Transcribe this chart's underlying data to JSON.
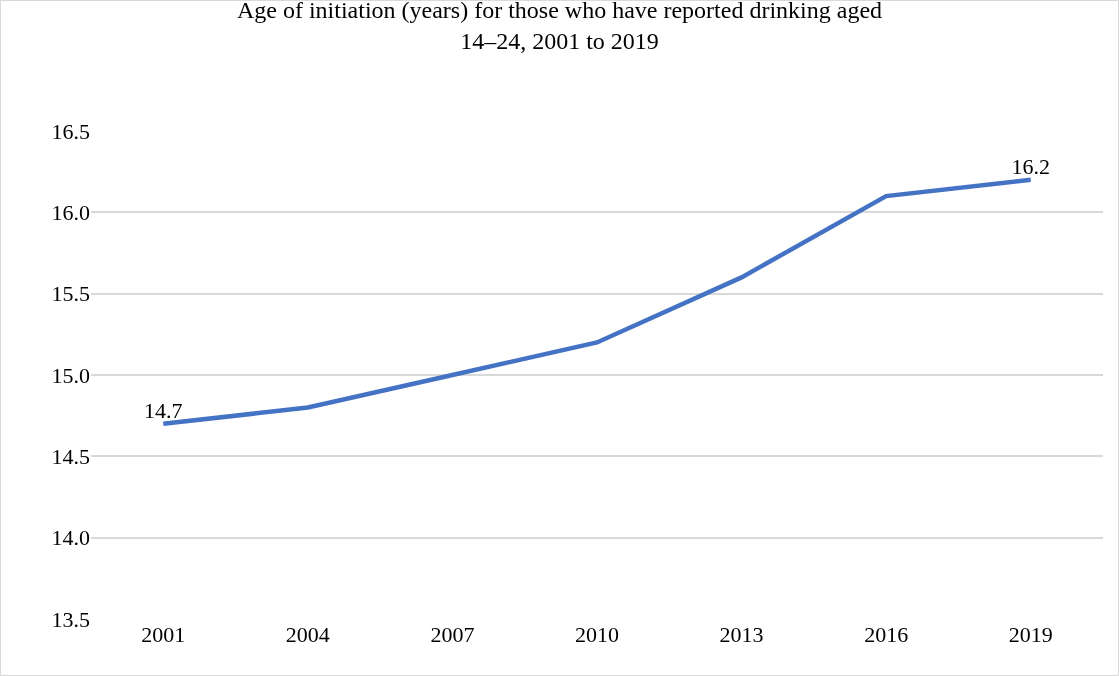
{
  "chart_data": {
    "type": "line",
    "title": "Age of initiation (years) for those who have reported drinking aged\n14–24, 2001 to 2019",
    "categories": [
      "2001",
      "2004",
      "2007",
      "2010",
      "2013",
      "2016",
      "2019"
    ],
    "series": [
      {
        "color": "#4472c4",
        "values": [
          14.7,
          14.8,
          15.0,
          15.2,
          15.6,
          16.1,
          16.2
        ],
        "value_labels": [
          "14.7",
          null,
          null,
          null,
          null,
          null,
          "16.2"
        ]
      }
    ],
    "ylim": [
      13.5,
      16.5
    ],
    "yticks": [
      {
        "value": 13.5,
        "label": "13.5"
      },
      {
        "value": 14,
        "label": "14.0"
      },
      {
        "value": 14.5,
        "label": "14.5"
      },
      {
        "value": 15,
        "label": "15.0"
      },
      {
        "value": 15.5,
        "label": "15.5"
      },
      {
        "value": 16,
        "label": "16.0"
      },
      {
        "value": 16.5,
        "label": "16.5"
      }
    ],
    "grid": "y"
  }
}
